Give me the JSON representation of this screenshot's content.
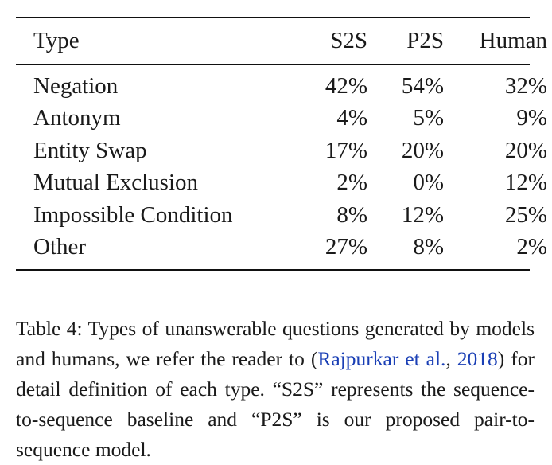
{
  "table": {
    "headers": {
      "type": "Type",
      "s2s": "S2S",
      "p2s": "P2S",
      "human": "Human"
    },
    "rows": [
      {
        "type": "Negation",
        "s2s": "42%",
        "p2s": "54%",
        "human": "32%"
      },
      {
        "type": "Antonym",
        "s2s": "4%",
        "p2s": "5%",
        "human": "9%"
      },
      {
        "type": "Entity Swap",
        "s2s": "17%",
        "p2s": "20%",
        "human": "20%"
      },
      {
        "type": "Mutual Exclusion",
        "s2s": "2%",
        "p2s": "0%",
        "human": "12%"
      },
      {
        "type": "Impossible Condition",
        "s2s": "8%",
        "p2s": "12%",
        "human": "25%"
      },
      {
        "type": "Other",
        "s2s": "27%",
        "p2s": "8%",
        "human": "2%"
      }
    ]
  },
  "caption": {
    "part1": "Table 4: Types of unanswerable questions generated by models and humans, we refer the reader to (",
    "cite_author": "Rajpurkar et al.",
    "part2": ", ",
    "cite_year": "2018",
    "part3": ") for detail definition of each type. “S2S” represents the sequence-to-sequence baseline and “P2S” is our proposed pair-to-sequence model.",
    "link_color": "#1a3fb5"
  }
}
